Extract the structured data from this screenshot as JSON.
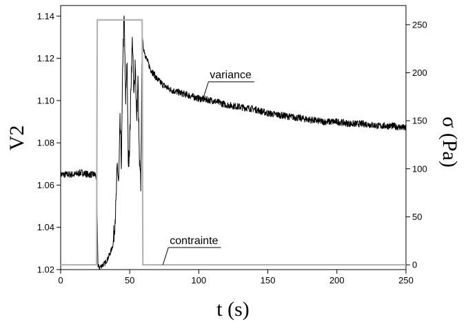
{
  "chart_data": {
    "type": "line",
    "xlabel": "t (s)",
    "ylabel_left": "V2",
    "ylabel_right": "σ (Pa)",
    "xlim": [
      0,
      250
    ],
    "ylim_left": [
      1.02,
      1.145
    ],
    "ylim_right": [
      -5,
      270
    ],
    "x_ticks": [
      0,
      50,
      100,
      150,
      200,
      250
    ],
    "y_ticks_left": [
      1.02,
      1.04,
      1.06,
      1.08,
      1.1,
      1.12,
      1.14
    ],
    "y_ticks_right": [
      0,
      50,
      100,
      150,
      200,
      250
    ],
    "grid": false,
    "legend": "none",
    "series": [
      {
        "name": "variance",
        "axis": "left",
        "color": "#000000",
        "noisy": true,
        "x": [
          0,
          5,
          10,
          15,
          20,
          25,
          26,
          27,
          28,
          30,
          32,
          34,
          36,
          38,
          40,
          41,
          42,
          43,
          44,
          45,
          46,
          47,
          48,
          49,
          50,
          51,
          52,
          53,
          54,
          55,
          56,
          57,
          58,
          59,
          60,
          62,
          65,
          70,
          75,
          80,
          90,
          100,
          110,
          120,
          130,
          140,
          150,
          160,
          170,
          180,
          190,
          200,
          210,
          220,
          230,
          240,
          250
        ],
        "y": [
          1.065,
          1.065,
          1.065,
          1.066,
          1.065,
          1.065,
          1.063,
          1.022,
          1.021,
          1.022,
          1.023,
          1.025,
          1.028,
          1.032,
          1.05,
          1.07,
          1.06,
          1.09,
          1.07,
          1.12,
          1.14,
          1.1,
          1.12,
          1.07,
          1.08,
          1.11,
          1.13,
          1.1,
          1.12,
          1.09,
          1.11,
          1.07,
          1.06,
          1.13,
          1.125,
          1.12,
          1.115,
          1.11,
          1.107,
          1.105,
          1.103,
          1.101,
          1.1,
          1.098,
          1.097,
          1.096,
          1.094,
          1.093,
          1.092,
          1.091,
          1.09,
          1.09,
          1.089,
          1.089,
          1.088,
          1.088,
          1.087
        ]
      },
      {
        "name": "contrainte",
        "axis": "right",
        "color": "#b3b3b3",
        "noisy": false,
        "x": [
          0,
          26,
          26.5,
          59,
          59.5,
          250
        ],
        "y": [
          0,
          0,
          255,
          255,
          0,
          0
        ]
      }
    ],
    "annotations": [
      {
        "text": "variance",
        "series": "variance",
        "at_x": 103
      },
      {
        "text": "contrainte",
        "series": "contrainte",
        "at_x": 74
      }
    ]
  }
}
